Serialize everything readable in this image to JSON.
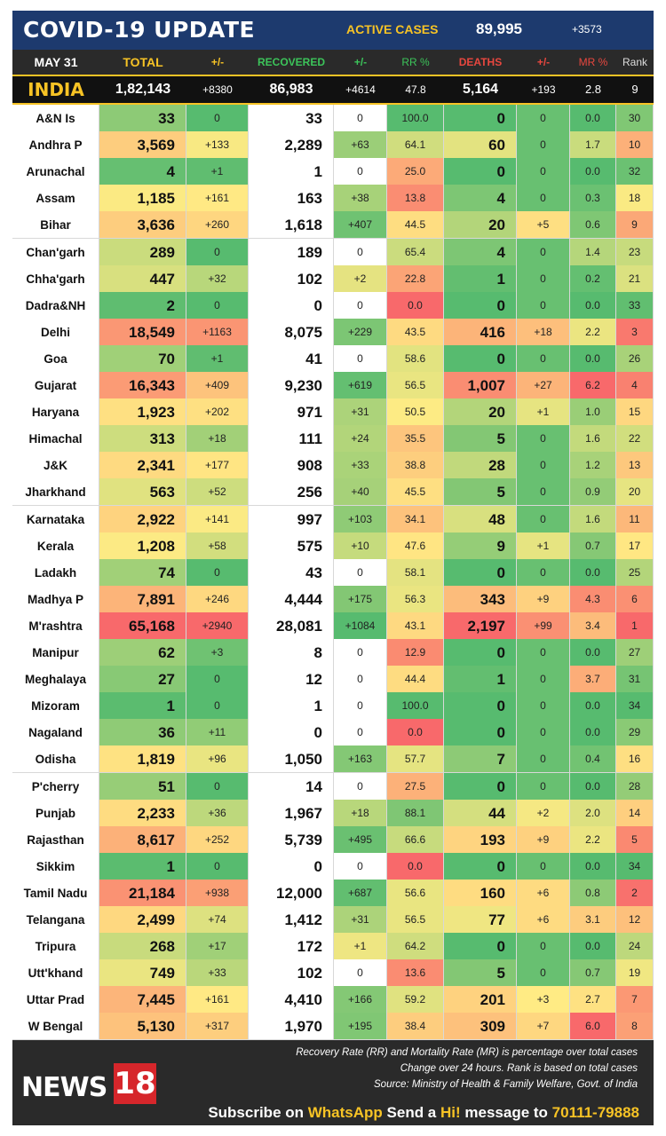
{
  "header": {
    "title": "COVID-19 UPDATE",
    "active_label": "ACTIVE CASES",
    "active_value": "89,995",
    "active_delta": "+3573"
  },
  "columns": {
    "date": "MAY 31",
    "total": "TOTAL",
    "pm1": "+/-",
    "recovered": "RECOVERED",
    "pm2": "+/-",
    "rr": "RR %",
    "deaths": "DEATHS",
    "pm3": "+/-",
    "mr": "MR %",
    "rank": "Rank"
  },
  "india": {
    "name": "INDIA",
    "total": "1,82,143",
    "d_total": "+8380",
    "recovered": "86,983",
    "d_rec": "+4614",
    "rr": "47.8",
    "deaths": "5,164",
    "d_deaths": "+193",
    "mr": "2.8",
    "rank": "9"
  },
  "rows": [
    {
      "state": "A&N Is",
      "total": "33",
      "d_total": "0",
      "recovered": "33",
      "d_rec": "0",
      "rr": "100.0",
      "deaths": "0",
      "d_deaths": "0",
      "mr": "0.0",
      "rank": "30"
    },
    {
      "state": "Andhra P",
      "total": "3,569",
      "d_total": "+133",
      "recovered": "2,289",
      "d_rec": "+63",
      "rr": "64.1",
      "deaths": "60",
      "d_deaths": "0",
      "mr": "1.7",
      "rank": "10"
    },
    {
      "state": "Arunachal",
      "total": "4",
      "d_total": "+1",
      "recovered": "1",
      "d_rec": "0",
      "rr": "25.0",
      "deaths": "0",
      "d_deaths": "0",
      "mr": "0.0",
      "rank": "32"
    },
    {
      "state": "Assam",
      "total": "1,185",
      "d_total": "+161",
      "recovered": "163",
      "d_rec": "+38",
      "rr": "13.8",
      "deaths": "4",
      "d_deaths": "0",
      "mr": "0.3",
      "rank": "18"
    },
    {
      "state": "Bihar",
      "total": "3,636",
      "d_total": "+260",
      "recovered": "1,618",
      "d_rec": "+407",
      "rr": "44.5",
      "deaths": "20",
      "d_deaths": "+5",
      "mr": "0.6",
      "rank": "9"
    },
    {
      "state": "Chan'garh",
      "total": "289",
      "d_total": "0",
      "recovered": "189",
      "d_rec": "0",
      "rr": "65.4",
      "deaths": "4",
      "d_deaths": "0",
      "mr": "1.4",
      "rank": "23"
    },
    {
      "state": "Chha'garh",
      "total": "447",
      "d_total": "+32",
      "recovered": "102",
      "d_rec": "+2",
      "rr": "22.8",
      "deaths": "1",
      "d_deaths": "0",
      "mr": "0.2",
      "rank": "21"
    },
    {
      "state": "Dadra&NH",
      "total": "2",
      "d_total": "0",
      "recovered": "0",
      "d_rec": "0",
      "rr": "0.0",
      "deaths": "0",
      "d_deaths": "0",
      "mr": "0.0",
      "rank": "33"
    },
    {
      "state": "Delhi",
      "total": "18,549",
      "d_total": "+1163",
      "recovered": "8,075",
      "d_rec": "+229",
      "rr": "43.5",
      "deaths": "416",
      "d_deaths": "+18",
      "mr": "2.2",
      "rank": "3"
    },
    {
      "state": "Goa",
      "total": "70",
      "d_total": "+1",
      "recovered": "41",
      "d_rec": "0",
      "rr": "58.6",
      "deaths": "0",
      "d_deaths": "0",
      "mr": "0.0",
      "rank": "26"
    },
    {
      "state": "Gujarat",
      "total": "16,343",
      "d_total": "+409",
      "recovered": "9,230",
      "d_rec": "+619",
      "rr": "56.5",
      "deaths": "1,007",
      "d_deaths": "+27",
      "mr": "6.2",
      "rank": "4"
    },
    {
      "state": "Haryana",
      "total": "1,923",
      "d_total": "+202",
      "recovered": "971",
      "d_rec": "+31",
      "rr": "50.5",
      "deaths": "20",
      "d_deaths": "+1",
      "mr": "1.0",
      "rank": "15"
    },
    {
      "state": "Himachal",
      "total": "313",
      "d_total": "+18",
      "recovered": "111",
      "d_rec": "+24",
      "rr": "35.5",
      "deaths": "5",
      "d_deaths": "0",
      "mr": "1.6",
      "rank": "22"
    },
    {
      "state": "J&K",
      "total": "2,341",
      "d_total": "+177",
      "recovered": "908",
      "d_rec": "+33",
      "rr": "38.8",
      "deaths": "28",
      "d_deaths": "0",
      "mr": "1.2",
      "rank": "13"
    },
    {
      "state": "Jharkhand",
      "total": "563",
      "d_total": "+52",
      "recovered": "256",
      "d_rec": "+40",
      "rr": "45.5",
      "deaths": "5",
      "d_deaths": "0",
      "mr": "0.9",
      "rank": "20"
    },
    {
      "state": "Karnataka",
      "total": "2,922",
      "d_total": "+141",
      "recovered": "997",
      "d_rec": "+103",
      "rr": "34.1",
      "deaths": "48",
      "d_deaths": "0",
      "mr": "1.6",
      "rank": "11"
    },
    {
      "state": "Kerala",
      "total": "1,208",
      "d_total": "+58",
      "recovered": "575",
      "d_rec": "+10",
      "rr": "47.6",
      "deaths": "9",
      "d_deaths": "+1",
      "mr": "0.7",
      "rank": "17"
    },
    {
      "state": "Ladakh",
      "total": "74",
      "d_total": "0",
      "recovered": "43",
      "d_rec": "0",
      "rr": "58.1",
      "deaths": "0",
      "d_deaths": "0",
      "mr": "0.0",
      "rank": "25"
    },
    {
      "state": "Madhya P",
      "total": "7,891",
      "d_total": "+246",
      "recovered": "4,444",
      "d_rec": "+175",
      "rr": "56.3",
      "deaths": "343",
      "d_deaths": "+9",
      "mr": "4.3",
      "rank": "6"
    },
    {
      "state": "M'rashtra",
      "total": "65,168",
      "d_total": "+2940",
      "recovered": "28,081",
      "d_rec": "+1084",
      "rr": "43.1",
      "deaths": "2,197",
      "d_deaths": "+99",
      "mr": "3.4",
      "rank": "1"
    },
    {
      "state": "Manipur",
      "total": "62",
      "d_total": "+3",
      "recovered": "8",
      "d_rec": "0",
      "rr": "12.9",
      "deaths": "0",
      "d_deaths": "0",
      "mr": "0.0",
      "rank": "27"
    },
    {
      "state": "Meghalaya",
      "total": "27",
      "d_total": "0",
      "recovered": "12",
      "d_rec": "0",
      "rr": "44.4",
      "deaths": "1",
      "d_deaths": "0",
      "mr": "3.7",
      "rank": "31"
    },
    {
      "state": "Mizoram",
      "total": "1",
      "d_total": "0",
      "recovered": "1",
      "d_rec": "0",
      "rr": "100.0",
      "deaths": "0",
      "d_deaths": "0",
      "mr": "0.0",
      "rank": "34"
    },
    {
      "state": "Nagaland",
      "total": "36",
      "d_total": "+11",
      "recovered": "0",
      "d_rec": "0",
      "rr": "0.0",
      "deaths": "0",
      "d_deaths": "0",
      "mr": "0.0",
      "rank": "29"
    },
    {
      "state": "Odisha",
      "total": "1,819",
      "d_total": "+96",
      "recovered": "1,050",
      "d_rec": "+163",
      "rr": "57.7",
      "deaths": "7",
      "d_deaths": "0",
      "mr": "0.4",
      "rank": "16"
    },
    {
      "state": "P'cherry",
      "total": "51",
      "d_total": "0",
      "recovered": "14",
      "d_rec": "0",
      "rr": "27.5",
      "deaths": "0",
      "d_deaths": "0",
      "mr": "0.0",
      "rank": "28"
    },
    {
      "state": "Punjab",
      "total": "2,233",
      "d_total": "+36",
      "recovered": "1,967",
      "d_rec": "+18",
      "rr": "88.1",
      "deaths": "44",
      "d_deaths": "+2",
      "mr": "2.0",
      "rank": "14"
    },
    {
      "state": "Rajasthan",
      "total": "8,617",
      "d_total": "+252",
      "recovered": "5,739",
      "d_rec": "+495",
      "rr": "66.6",
      "deaths": "193",
      "d_deaths": "+9",
      "mr": "2.2",
      "rank": "5"
    },
    {
      "state": "Sikkim",
      "total": "1",
      "d_total": "0",
      "recovered": "0",
      "d_rec": "0",
      "rr": "0.0",
      "deaths": "0",
      "d_deaths": "0",
      "mr": "0.0",
      "rank": "34"
    },
    {
      "state": "Tamil Nadu",
      "total": "21,184",
      "d_total": "+938",
      "recovered": "12,000",
      "d_rec": "+687",
      "rr": "56.6",
      "deaths": "160",
      "d_deaths": "+6",
      "mr": "0.8",
      "rank": "2"
    },
    {
      "state": "Telangana",
      "total": "2,499",
      "d_total": "+74",
      "recovered": "1,412",
      "d_rec": "+31",
      "rr": "56.5",
      "deaths": "77",
      "d_deaths": "+6",
      "mr": "3.1",
      "rank": "12"
    },
    {
      "state": "Tripura",
      "total": "268",
      "d_total": "+17",
      "recovered": "172",
      "d_rec": "+1",
      "rr": "64.2",
      "deaths": "0",
      "d_deaths": "0",
      "mr": "0.0",
      "rank": "24"
    },
    {
      "state": "Utt'khand",
      "total": "749",
      "d_total": "+33",
      "recovered": "102",
      "d_rec": "0",
      "rr": "13.6",
      "deaths": "5",
      "d_deaths": "0",
      "mr": "0.7",
      "rank": "19"
    },
    {
      "state": "Uttar Prad",
      "total": "7,445",
      "d_total": "+161",
      "recovered": "4,410",
      "d_rec": "+166",
      "rr": "59.2",
      "deaths": "201",
      "d_deaths": "+3",
      "mr": "2.7",
      "rank": "7"
    },
    {
      "state": "W Bengal",
      "total": "5,130",
      "d_total": "+317",
      "recovered": "1,970",
      "d_rec": "+195",
      "rr": "38.4",
      "deaths": "309",
      "d_deaths": "+7",
      "mr": "6.0",
      "rank": "8"
    }
  ],
  "footer": {
    "logo_text": "NEWS",
    "logo_number": "18",
    "note1": "Recovery Rate (RR) and Mortality Rate (MR) is percentage over total cases",
    "note2": "Change over 24 hours. Rank is based on total cases",
    "note3": "Source: Ministry of Health & Family Welfare, Govt. of India",
    "subscribe_a": "Subscribe on ",
    "subscribe_b": "WhatsApp",
    "subscribe_c": " Send a ",
    "subscribe_d": "Hi!",
    "subscribe_e": " message to ",
    "subscribe_f": "70111-79888"
  },
  "colors": {
    "title_bg": "#1d3a6e",
    "accent_yellow": "#f7c325",
    "recovered_green": "#3cc45a",
    "deaths_red": "#e8473f",
    "logo_red": "#d6262b",
    "heat_green": "#57bb6f",
    "heat_yellow": "#ffeb84",
    "heat_red": "#f8696b"
  }
}
